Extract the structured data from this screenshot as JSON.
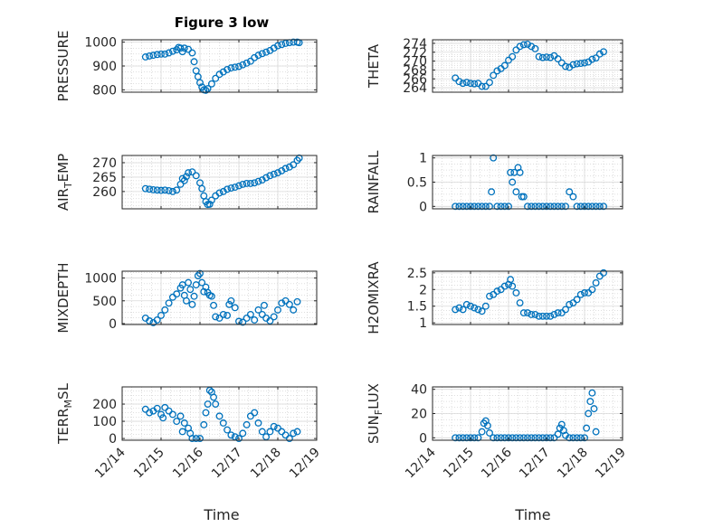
{
  "figure": {
    "title": "Figure 3 low",
    "bg": "#ffffff",
    "marker_color": "#0072BD",
    "grid_color": "#d9d9d9",
    "axis_color": "#262626"
  },
  "x_axis": {
    "label": "Time",
    "start": "12/14",
    "ticks": [
      "12/14",
      "12/15",
      "12/16",
      "12/17",
      "12/18",
      "12/19"
    ],
    "range_days": [
      0,
      5
    ],
    "tick_angle": -45
  },
  "chart_data": [
    {
      "type": "scatter",
      "ylabel": "PRESSURE",
      "ylim": [
        790,
        1010
      ],
      "yticks": [
        800,
        900,
        1000
      ],
      "title": "Figure 3 low",
      "grid": true,
      "x": [
        0.6,
        0.7,
        0.8,
        0.9,
        1.0,
        1.1,
        1.2,
        1.3,
        1.4,
        1.45,
        1.5,
        1.55,
        1.6,
        1.7,
        1.8,
        1.85,
        1.9,
        1.95,
        2.0,
        2.05,
        2.1,
        2.15,
        2.2,
        2.3,
        2.4,
        2.5,
        2.6,
        2.7,
        2.8,
        2.9,
        3.0,
        3.1,
        3.2,
        3.3,
        3.4,
        3.5,
        3.6,
        3.7,
        3.8,
        3.9,
        4.0,
        4.1,
        4.2,
        4.3,
        4.4,
        4.5,
        4.55
      ],
      "y": [
        938,
        942,
        945,
        948,
        950,
        950,
        955,
        962,
        968,
        978,
        975,
        960,
        975,
        970,
        955,
        918,
        880,
        855,
        830,
        812,
        800,
        798,
        805,
        825,
        848,
        865,
        875,
        885,
        892,
        895,
        898,
        905,
        912,
        920,
        935,
        945,
        952,
        958,
        965,
        975,
        985,
        990,
        995,
        998,
        1000,
        1000,
        998
      ]
    },
    {
      "type": "scatter",
      "ylabel": "THETA",
      "ylim": [
        263,
        274.8
      ],
      "yticks": [
        264,
        266,
        268,
        270,
        272,
        274
      ],
      "grid": true,
      "x": [
        0.6,
        0.7,
        0.8,
        0.9,
        1.0,
        1.1,
        1.2,
        1.3,
        1.4,
        1.5,
        1.6,
        1.7,
        1.8,
        1.9,
        2.0,
        2.1,
        2.2,
        2.3,
        2.4,
        2.5,
        2.6,
        2.7,
        2.8,
        2.9,
        3.0,
        3.1,
        3.2,
        3.3,
        3.4,
        3.5,
        3.6,
        3.7,
        3.8,
        3.9,
        4.0,
        4.1,
        4.2,
        4.3,
        4.4,
        4.5
      ],
      "y": [
        266.2,
        265.4,
        265.0,
        265.2,
        265.0,
        264.9,
        265.0,
        264.3,
        264.3,
        265.2,
        266.8,
        267.8,
        268.3,
        269.0,
        270.2,
        271.0,
        272.5,
        273.3,
        273.7,
        273.8,
        273.3,
        272.8,
        271.0,
        270.8,
        270.9,
        270.8,
        271.2,
        270.5,
        269.6,
        268.8,
        268.6,
        269.2,
        269.4,
        269.5,
        269.6,
        269.8,
        270.4,
        270.7,
        271.6,
        272.1
      ]
    },
    {
      "type": "scatter",
      "ylabel": "AIR_TEMP",
      "ylim": [
        254,
        272.5
      ],
      "yticks": [
        260,
        265,
        270
      ],
      "grid": true,
      "x": [
        0.6,
        0.7,
        0.8,
        0.9,
        1.0,
        1.1,
        1.2,
        1.3,
        1.4,
        1.5,
        1.55,
        1.6,
        1.65,
        1.7,
        1.8,
        1.9,
        2.0,
        2.05,
        2.1,
        2.15,
        2.2,
        2.25,
        2.3,
        2.4,
        2.5,
        2.6,
        2.7,
        2.8,
        2.9,
        3.0,
        3.1,
        3.2,
        3.3,
        3.4,
        3.5,
        3.6,
        3.7,
        3.8,
        3.9,
        4.0,
        4.1,
        4.2,
        4.3,
        4.4,
        4.5,
        4.55
      ],
      "y": [
        261.0,
        260.8,
        260.6,
        260.5,
        260.4,
        260.5,
        260.3,
        260.0,
        260.5,
        262.5,
        264.5,
        263.8,
        265.2,
        266.5,
        266.8,
        265.5,
        263.0,
        261.0,
        258.5,
        256.5,
        255.5,
        255.6,
        257.0,
        258.5,
        259.5,
        260.0,
        260.8,
        261.2,
        261.5,
        262.0,
        262.5,
        262.8,
        262.8,
        263.0,
        263.5,
        264.0,
        264.8,
        265.5,
        266.0,
        266.5,
        267.2,
        268.0,
        268.5,
        269.3,
        270.8,
        271.6
      ]
    },
    {
      "type": "scatter",
      "ylabel": "RAINFALL",
      "ylim": [
        -0.05,
        1.05
      ],
      "yticks": [
        0,
        0.5,
        1
      ],
      "grid": true,
      "x": [
        0.6,
        0.7,
        0.8,
        0.9,
        1.0,
        1.1,
        1.2,
        1.3,
        1.4,
        1.5,
        1.55,
        1.6,
        1.7,
        1.8,
        1.9,
        2.0,
        2.05,
        2.1,
        2.15,
        2.2,
        2.25,
        2.3,
        2.35,
        2.4,
        2.5,
        2.6,
        2.7,
        2.8,
        2.9,
        3.0,
        3.1,
        3.2,
        3.3,
        3.4,
        3.5,
        3.6,
        3.7,
        3.8,
        3.9,
        4.0,
        4.1,
        4.2,
        4.3,
        4.4,
        4.5
      ],
      "y": [
        0,
        0,
        0,
        0,
        0,
        0,
        0,
        0,
        0,
        0,
        0.3,
        1.0,
        0,
        0,
        0,
        0,
        0.7,
        0.5,
        0.7,
        0.3,
        0.8,
        0.7,
        0.2,
        0.2,
        0,
        0,
        0,
        0,
        0,
        0,
        0,
        0,
        0,
        0,
        0,
        0.3,
        0.2,
        0,
        0,
        0,
        0,
        0,
        0,
        0,
        0
      ]
    },
    {
      "type": "scatter",
      "ylabel": "MIXDEPTH",
      "ylim": [
        -20,
        1150
      ],
      "yticks": [
        0,
        500,
        1000
      ],
      "grid": true,
      "x": [
        0.6,
        0.7,
        0.8,
        0.9,
        1.0,
        1.1,
        1.2,
        1.3,
        1.4,
        1.5,
        1.55,
        1.6,
        1.65,
        1.7,
        1.75,
        1.8,
        1.85,
        1.9,
        1.95,
        2.0,
        2.05,
        2.1,
        2.15,
        2.2,
        2.25,
        2.3,
        2.35,
        2.4,
        2.5,
        2.6,
        2.7,
        2.75,
        2.8,
        2.9,
        3.0,
        3.1,
        3.2,
        3.3,
        3.4,
        3.5,
        3.6,
        3.65,
        3.7,
        3.8,
        3.9,
        4.0,
        4.1,
        4.2,
        4.3,
        4.4,
        4.5
      ],
      "y": [
        120,
        60,
        20,
        80,
        180,
        300,
        450,
        580,
        650,
        780,
        850,
        620,
        500,
        900,
        750,
        420,
        600,
        850,
        1050,
        1100,
        900,
        700,
        800,
        680,
        620,
        600,
        400,
        150,
        120,
        200,
        180,
        420,
        500,
        350,
        50,
        30,
        120,
        200,
        80,
        300,
        200,
        400,
        120,
        60,
        150,
        300,
        450,
        500,
        420,
        300,
        480
      ]
    },
    {
      "type": "scatter",
      "ylabel": "H2OMIXRA",
      "ylim": [
        0.95,
        2.55
      ],
      "yticks": [
        1,
        1.5,
        2,
        2.5
      ],
      "grid": true,
      "x": [
        0.6,
        0.7,
        0.8,
        0.9,
        1.0,
        1.1,
        1.2,
        1.3,
        1.4,
        1.5,
        1.6,
        1.7,
        1.8,
        1.9,
        2.0,
        2.05,
        2.1,
        2.2,
        2.3,
        2.4,
        2.5,
        2.6,
        2.7,
        2.8,
        2.9,
        3.0,
        3.1,
        3.2,
        3.3,
        3.4,
        3.5,
        3.6,
        3.7,
        3.8,
        3.9,
        4.0,
        4.1,
        4.2,
        4.3,
        4.4,
        4.5
      ],
      "y": [
        1.4,
        1.45,
        1.4,
        1.55,
        1.5,
        1.45,
        1.4,
        1.35,
        1.5,
        1.8,
        1.85,
        1.95,
        2.0,
        2.1,
        2.15,
        2.3,
        2.1,
        1.9,
        1.6,
        1.3,
        1.3,
        1.25,
        1.25,
        1.2,
        1.2,
        1.2,
        1.2,
        1.25,
        1.3,
        1.3,
        1.4,
        1.55,
        1.6,
        1.7,
        1.85,
        1.9,
        1.9,
        2.0,
        2.2,
        2.4,
        2.5
      ]
    },
    {
      "type": "scatter",
      "ylabel": "TERR_MSL",
      "ylim": [
        -10,
        300
      ],
      "yticks": [
        0,
        100,
        200
      ],
      "grid": true,
      "x": [
        0.6,
        0.7,
        0.8,
        0.9,
        1.0,
        1.05,
        1.1,
        1.2,
        1.3,
        1.4,
        1.5,
        1.55,
        1.6,
        1.7,
        1.75,
        1.8,
        1.9,
        2.0,
        2.1,
        2.15,
        2.2,
        2.25,
        2.3,
        2.35,
        2.4,
        2.5,
        2.6,
        2.7,
        2.8,
        2.9,
        3.0,
        3.1,
        3.2,
        3.3,
        3.4,
        3.5,
        3.6,
        3.7,
        3.8,
        3.9,
        4.0,
        4.1,
        4.2,
        4.3,
        4.4,
        4.5
      ],
      "y": [
        170,
        150,
        160,
        175,
        140,
        120,
        180,
        160,
        140,
        100,
        130,
        40,
        90,
        60,
        30,
        0,
        0,
        0,
        80,
        150,
        200,
        280,
        270,
        240,
        200,
        130,
        90,
        50,
        20,
        10,
        0,
        30,
        80,
        130,
        150,
        90,
        40,
        10,
        40,
        70,
        60,
        40,
        20,
        0,
        30,
        40
      ]
    },
    {
      "type": "scatter",
      "ylabel": "SUN_FLUX",
      "ylim": [
        -2,
        42
      ],
      "yticks": [
        0,
        20,
        40
      ],
      "grid": true,
      "x": [
        0.6,
        0.7,
        0.8,
        0.9,
        1.0,
        1.1,
        1.2,
        1.3,
        1.35,
        1.4,
        1.45,
        1.5,
        1.6,
        1.7,
        1.8,
        1.9,
        2.0,
        2.1,
        2.2,
        2.3,
        2.4,
        2.5,
        2.6,
        2.7,
        2.8,
        2.9,
        3.0,
        3.1,
        3.2,
        3.3,
        3.35,
        3.4,
        3.45,
        3.5,
        3.6,
        3.7,
        3.8,
        3.9,
        4.0,
        4.05,
        4.1,
        4.15,
        4.2,
        4.25,
        4.3
      ],
      "y": [
        0,
        0,
        0,
        0,
        0,
        0,
        0,
        5,
        12,
        14,
        10,
        4,
        0,
        0,
        0,
        0,
        0,
        0,
        0,
        0,
        0,
        0,
        0,
        0,
        0,
        0,
        0,
        0,
        0,
        3,
        8,
        11,
        6,
        2,
        0,
        0,
        0,
        0,
        0,
        8,
        20,
        30,
        37,
        24,
        5
      ]
    }
  ]
}
